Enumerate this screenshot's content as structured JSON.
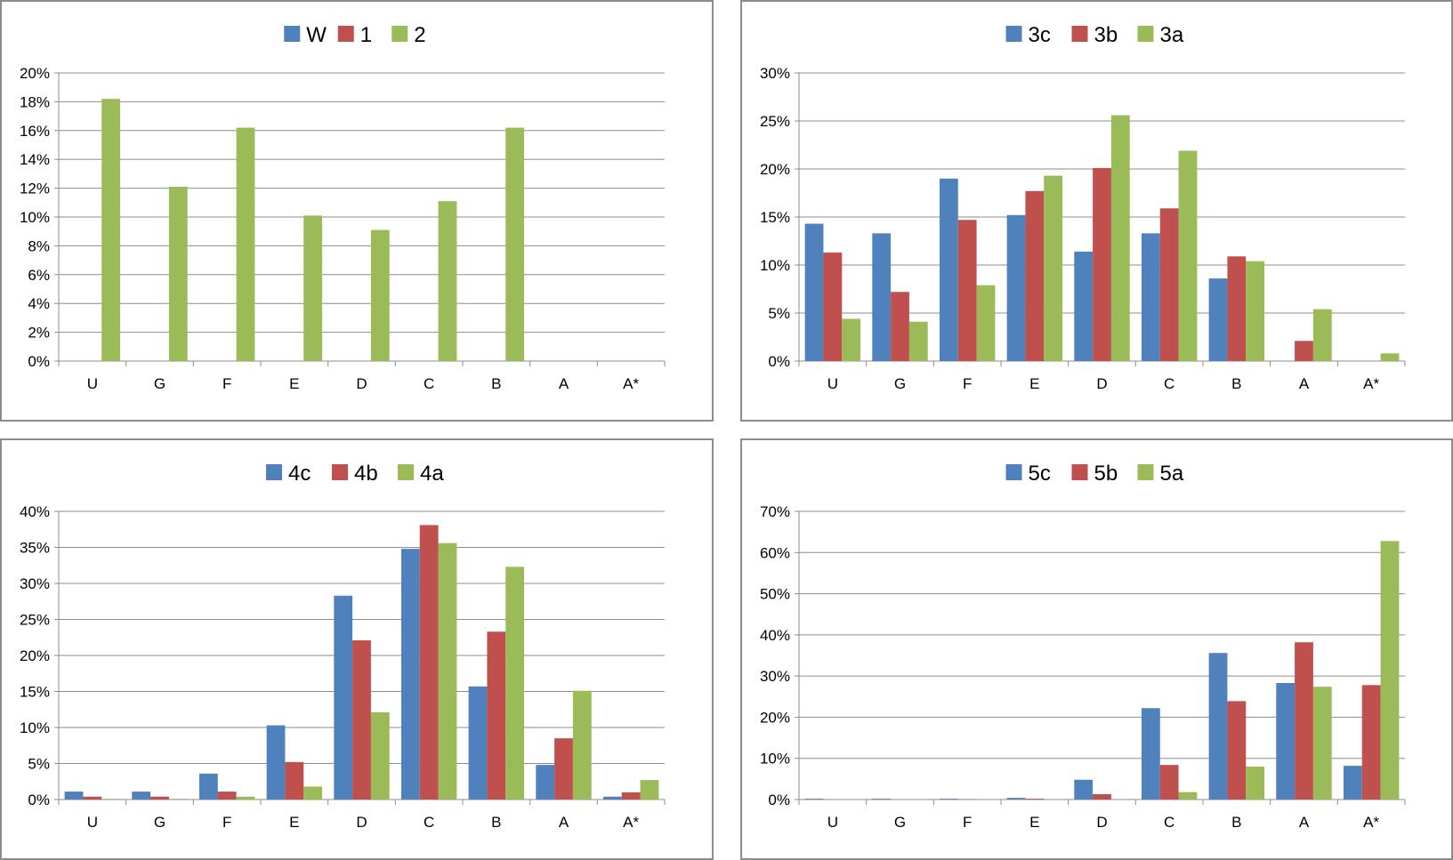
{
  "colors": {
    "series1": "#4F81BD",
    "series2": "#C0504D",
    "series3": "#9BBB59",
    "grid": "#8c8c8c",
    "border": "#8c8c8c"
  },
  "chart_data": [
    {
      "type": "bar",
      "categories": [
        "U",
        "G",
        "F",
        "E",
        "D",
        "C",
        "B",
        "A",
        "A*"
      ],
      "series": [
        {
          "name": "W",
          "values": [
            0,
            0,
            0,
            0,
            0,
            0,
            0,
            0,
            0
          ]
        },
        {
          "name": "1",
          "values": [
            0,
            0,
            0,
            0,
            0,
            0,
            0,
            0,
            0
          ]
        },
        {
          "name": "2",
          "values": [
            18.2,
            12.1,
            16.2,
            10.1,
            9.1,
            11.1,
            16.2,
            0,
            0
          ]
        }
      ],
      "ylim": [
        0,
        20
      ],
      "yticks": [
        "0%",
        "2%",
        "4%",
        "6%",
        "8%",
        "10%",
        "12%",
        "14%",
        "16%",
        "18%",
        "20%"
      ],
      "legend": "top",
      "grid": true
    },
    {
      "type": "bar",
      "categories": [
        "U",
        "G",
        "F",
        "E",
        "D",
        "C",
        "B",
        "A",
        "A*"
      ],
      "series": [
        {
          "name": "3c",
          "values": [
            14.3,
            13.3,
            19.0,
            15.2,
            11.4,
            13.3,
            8.6,
            0,
            0
          ]
        },
        {
          "name": "3b",
          "values": [
            11.3,
            7.2,
            14.7,
            17.7,
            20.1,
            15.9,
            10.9,
            2.1,
            0
          ]
        },
        {
          "name": "3a",
          "values": [
            4.4,
            4.1,
            7.9,
            19.3,
            25.6,
            21.9,
            10.4,
            5.4,
            0.8
          ]
        }
      ],
      "ylim": [
        0,
        30
      ],
      "yticks": [
        "0%",
        "5%",
        "10%",
        "15%",
        "20%",
        "25%",
        "30%"
      ],
      "legend": "top",
      "grid": true
    },
    {
      "type": "bar",
      "categories": [
        "U",
        "G",
        "F",
        "E",
        "D",
        "C",
        "B",
        "A",
        "A*"
      ],
      "series": [
        {
          "name": "4c",
          "values": [
            1.1,
            1.1,
            3.6,
            10.3,
            28.3,
            34.8,
            15.7,
            4.8,
            0.4
          ]
        },
        {
          "name": "4b",
          "values": [
            0.4,
            0.4,
            1.1,
            5.2,
            22.1,
            38.1,
            23.3,
            8.5,
            1.0
          ]
        },
        {
          "name": "4a",
          "values": [
            0.1,
            0.1,
            0.4,
            1.8,
            12.1,
            35.6,
            32.3,
            15.1,
            2.7
          ]
        }
      ],
      "ylim": [
        0,
        40
      ],
      "yticks": [
        "0%",
        "5%",
        "10%",
        "15%",
        "20%",
        "25%",
        "30%",
        "35%",
        "40%"
      ],
      "legend": "top",
      "grid": true
    },
    {
      "type": "bar",
      "categories": [
        "U",
        "G",
        "F",
        "E",
        "D",
        "C",
        "B",
        "A",
        "A*"
      ],
      "series": [
        {
          "name": "5c",
          "values": [
            0.2,
            0.2,
            0.2,
            0.4,
            4.8,
            22.2,
            35.6,
            28.3,
            8.2
          ]
        },
        {
          "name": "5b",
          "values": [
            0,
            0,
            0.1,
            0.2,
            1.3,
            8.4,
            23.9,
            38.2,
            27.8
          ]
        },
        {
          "name": "5a",
          "values": [
            0,
            0,
            0,
            0,
            0,
            1.8,
            8.0,
            27.4,
            62.8
          ]
        }
      ],
      "ylim": [
        0,
        70
      ],
      "yticks": [
        "0%",
        "10%",
        "20%",
        "30%",
        "40%",
        "50%",
        "60%",
        "70%"
      ],
      "legend": "top",
      "grid": true
    }
  ]
}
